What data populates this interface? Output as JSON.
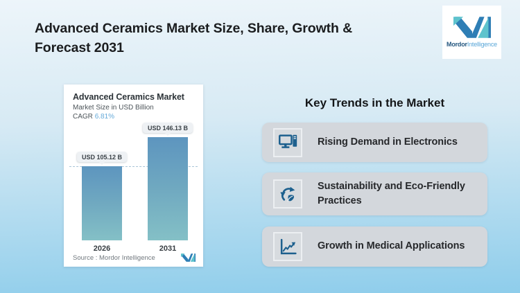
{
  "header": {
    "title": "Advanced Ceramics Market Size, Share, Growth & Forecast 2031"
  },
  "logo": {
    "brand_bold": "Mordor",
    "brand_light": "Intelligence"
  },
  "chart_card": {
    "title": "Advanced Ceramics Market",
    "subtitle": "Market Size in USD Billion",
    "cagr_label": "CAGR",
    "cagr_value": "6.81%",
    "source": "Source :  Mordor Intelligence"
  },
  "chart_data": {
    "type": "bar",
    "title": "Advanced Ceramics Market",
    "subtitle": "Market Size in USD Billion",
    "cagr_pct": 6.81,
    "categories": [
      "2026",
      "2031"
    ],
    "values": [
      105.12,
      146.13
    ],
    "data_labels": [
      "USD 105.12 B",
      "USD 146.13 B"
    ],
    "ylabel": "Market Size in USD Billion",
    "ylim": [
      0,
      160
    ],
    "grid": false,
    "reference_line": "horizontal dashed line at 2026 value (105.12)",
    "bar_gradient": [
      "#5d95bf",
      "#84c0c6"
    ],
    "source": "Mordor Intelligence"
  },
  "trends": {
    "heading": "Key Trends in the Market",
    "items": [
      {
        "icon": "desktop-computer-icon",
        "label": "Rising Demand in Electronics"
      },
      {
        "icon": "recycle-leaf-icon",
        "label": "Sustainability and Eco-Friendly Practices"
      },
      {
        "icon": "growth-chart-icon",
        "label": "Growth in Medical Applications"
      }
    ]
  },
  "colors": {
    "background_top": "#edf5fa",
    "background_bottom": "#8ecdeb",
    "brand_blue": "#2e7eb5",
    "brand_teal": "#5ec3cd",
    "cagr_accent": "#64a9d9",
    "bar_top": "#5d95bf",
    "bar_bottom": "#84c0c6",
    "trend_card_gray": "#d3d7dc",
    "icon_blue": "#1d608e"
  }
}
